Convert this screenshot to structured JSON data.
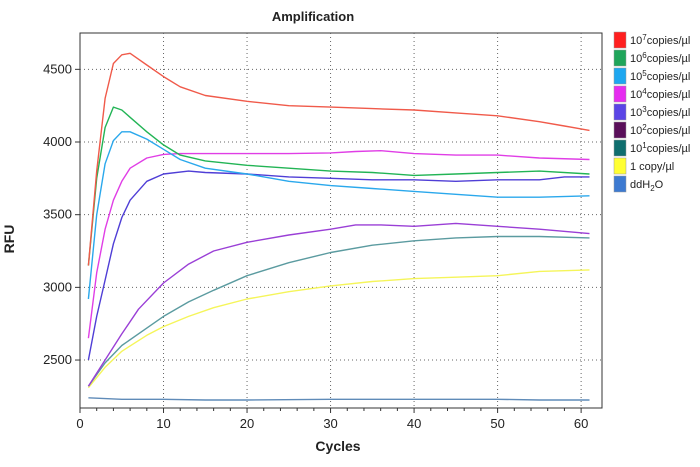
{
  "chart_data": {
    "type": "line",
    "title": "Amplification",
    "xlabel": "Cycles",
    "ylabel": "RFU",
    "xlim": [
      0,
      62.5
    ],
    "ylim": [
      2170,
      4750
    ],
    "xticks": [
      0,
      10,
      20,
      30,
      40,
      50,
      60
    ],
    "yticks": [
      2500,
      3000,
      3500,
      4000,
      4500
    ],
    "grid": true,
    "legend_position": "right",
    "series": [
      {
        "name": "10",
        "sup": "7",
        "suffix": "copies/µl",
        "color": "#f05a4a",
        "points": [
          [
            1,
            3150
          ],
          [
            2,
            3800
          ],
          [
            3,
            4300
          ],
          [
            4,
            4540
          ],
          [
            5,
            4600
          ],
          [
            6,
            4610
          ],
          [
            7,
            4570
          ],
          [
            8,
            4530
          ],
          [
            10,
            4450
          ],
          [
            12,
            4380
          ],
          [
            15,
            4320
          ],
          [
            20,
            4280
          ],
          [
            25,
            4250
          ],
          [
            30,
            4240
          ],
          [
            35,
            4230
          ],
          [
            40,
            4220
          ],
          [
            45,
            4200
          ],
          [
            50,
            4180
          ],
          [
            55,
            4140
          ],
          [
            58,
            4110
          ],
          [
            61,
            4080
          ]
        ]
      },
      {
        "name": "10",
        "sup": "6",
        "suffix": "copies/µl",
        "color": "#22b455",
        "points": [
          [
            1,
            3150
          ],
          [
            2,
            3750
          ],
          [
            3,
            4100
          ],
          [
            4,
            4240
          ],
          [
            5,
            4220
          ],
          [
            6,
            4170
          ],
          [
            8,
            4070
          ],
          [
            10,
            3980
          ],
          [
            12,
            3910
          ],
          [
            15,
            3870
          ],
          [
            20,
            3840
          ],
          [
            25,
            3820
          ],
          [
            30,
            3800
          ],
          [
            35,
            3790
          ],
          [
            40,
            3770
          ],
          [
            45,
            3780
          ],
          [
            50,
            3790
          ],
          [
            55,
            3800
          ],
          [
            61,
            3780
          ]
        ]
      },
      {
        "name": "10",
        "sup": "5",
        "suffix": "copies/µl",
        "color": "#2aa8ec",
        "points": [
          [
            1,
            2920
          ],
          [
            2,
            3500
          ],
          [
            3,
            3850
          ],
          [
            4,
            4010
          ],
          [
            5,
            4070
          ],
          [
            6,
            4070
          ],
          [
            8,
            4020
          ],
          [
            10,
            3950
          ],
          [
            12,
            3880
          ],
          [
            15,
            3820
          ],
          [
            20,
            3780
          ],
          [
            25,
            3730
          ],
          [
            30,
            3700
          ],
          [
            35,
            3680
          ],
          [
            40,
            3660
          ],
          [
            45,
            3640
          ],
          [
            50,
            3620
          ],
          [
            55,
            3620
          ],
          [
            61,
            3630
          ]
        ]
      },
      {
        "name": "10",
        "sup": "4",
        "suffix": "copies/µl",
        "color": "#e03ee6",
        "points": [
          [
            1,
            2650
          ],
          [
            2,
            3100
          ],
          [
            3,
            3400
          ],
          [
            4,
            3600
          ],
          [
            5,
            3730
          ],
          [
            6,
            3820
          ],
          [
            8,
            3890
          ],
          [
            10,
            3915
          ],
          [
            12,
            3920
          ],
          [
            15,
            3920
          ],
          [
            20,
            3920
          ],
          [
            25,
            3920
          ],
          [
            30,
            3925
          ],
          [
            33,
            3935
          ],
          [
            36,
            3940
          ],
          [
            40,
            3920
          ],
          [
            45,
            3910
          ],
          [
            50,
            3910
          ],
          [
            55,
            3890
          ],
          [
            61,
            3880
          ]
        ]
      },
      {
        "name": "10",
        "sup": "3",
        "suffix": "copies/µl",
        "color": "#4f3ed6",
        "points": [
          [
            1,
            2500
          ],
          [
            2,
            2800
          ],
          [
            3,
            3050
          ],
          [
            4,
            3300
          ],
          [
            5,
            3480
          ],
          [
            6,
            3600
          ],
          [
            8,
            3730
          ],
          [
            10,
            3780
          ],
          [
            13,
            3800
          ],
          [
            15,
            3790
          ],
          [
            20,
            3780
          ],
          [
            25,
            3760
          ],
          [
            30,
            3750
          ],
          [
            35,
            3740
          ],
          [
            40,
            3740
          ],
          [
            45,
            3730
          ],
          [
            50,
            3740
          ],
          [
            55,
            3740
          ],
          [
            58,
            3760
          ],
          [
            61,
            3760
          ]
        ]
      },
      {
        "name": "10",
        "sup": "2",
        "suffix": "copies/µl",
        "color": "#9a3fd6",
        "points": [
          [
            1,
            2320
          ],
          [
            3,
            2500
          ],
          [
            5,
            2680
          ],
          [
            7,
            2850
          ],
          [
            10,
            3030
          ],
          [
            13,
            3160
          ],
          [
            16,
            3250
          ],
          [
            20,
            3310
          ],
          [
            25,
            3360
          ],
          [
            30,
            3400
          ],
          [
            33,
            3430
          ],
          [
            36,
            3430
          ],
          [
            40,
            3420
          ],
          [
            45,
            3440
          ],
          [
            50,
            3420
          ],
          [
            55,
            3400
          ],
          [
            61,
            3370
          ]
        ]
      },
      {
        "name": "10",
        "sup": "1",
        "suffix": "copies/µl",
        "color": "#5b9ba0",
        "points": [
          [
            1,
            2320
          ],
          [
            3,
            2480
          ],
          [
            5,
            2600
          ],
          [
            8,
            2720
          ],
          [
            10,
            2800
          ],
          [
            13,
            2900
          ],
          [
            16,
            2980
          ],
          [
            20,
            3080
          ],
          [
            25,
            3170
          ],
          [
            30,
            3240
          ],
          [
            35,
            3290
          ],
          [
            40,
            3320
          ],
          [
            45,
            3340
          ],
          [
            50,
            3350
          ],
          [
            55,
            3350
          ],
          [
            61,
            3340
          ]
        ]
      },
      {
        "name": "1 copy/µl",
        "sup": "",
        "suffix": "",
        "color": "#f5f55a",
        "points": [
          [
            1,
            2310
          ],
          [
            3,
            2450
          ],
          [
            5,
            2560
          ],
          [
            8,
            2670
          ],
          [
            10,
            2730
          ],
          [
            13,
            2800
          ],
          [
            16,
            2860
          ],
          [
            20,
            2920
          ],
          [
            25,
            2970
          ],
          [
            30,
            3010
          ],
          [
            35,
            3040
          ],
          [
            40,
            3060
          ],
          [
            45,
            3070
          ],
          [
            50,
            3080
          ],
          [
            55,
            3110
          ],
          [
            61,
            3120
          ]
        ]
      },
      {
        "name": "ddH",
        "sup": "",
        "sub": "2",
        "suffix": "O",
        "color": "#5f8bb8",
        "points": [
          [
            1,
            2240
          ],
          [
            5,
            2230
          ],
          [
            10,
            2230
          ],
          [
            15,
            2225
          ],
          [
            20,
            2225
          ],
          [
            30,
            2230
          ],
          [
            40,
            2230
          ],
          [
            50,
            2230
          ],
          [
            55,
            2225
          ],
          [
            61,
            2225
          ]
        ]
      }
    ],
    "legend_swatches": [
      {
        "color": "#ff1f1f",
        "label_base": "10",
        "label_sup": "7",
        "label_rest": "copies/µl"
      },
      {
        "color": "#1fa55a",
        "label_base": "10",
        "label_sup": "6",
        "label_rest": "copies/µl"
      },
      {
        "color": "#1ea7f0",
        "label_base": "10",
        "label_sup": "5",
        "label_rest": "copies/µl"
      },
      {
        "color": "#e62cf0",
        "label_base": "10",
        "label_sup": "4",
        "label_rest": "copies/µl"
      },
      {
        "color": "#5a45e6",
        "label_base": "10",
        "label_sup": "3",
        "label_rest": "copies/µl"
      },
      {
        "color": "#5a0f5a",
        "label_base": "10",
        "label_sup": "2",
        "label_rest": "copies/µl"
      },
      {
        "color": "#0f6e6e",
        "label_base": "10",
        "label_sup": "1",
        "label_rest": "copies/µl"
      },
      {
        "color": "#ffff33",
        "label_base": "1 copy/µl",
        "label_sup": "",
        "label_rest": ""
      },
      {
        "color": "#3d7ad1",
        "label_base": "ddH",
        "label_sub": "2",
        "label_rest": "O"
      }
    ]
  }
}
